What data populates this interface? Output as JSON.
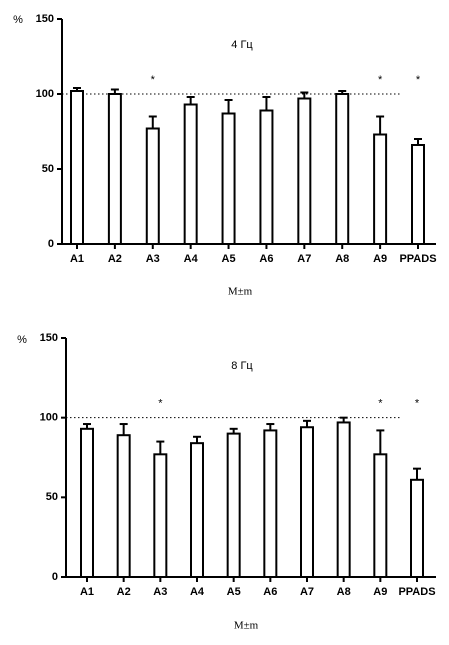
{
  "chart_data": [
    {
      "type": "bar",
      "title": "4 Гц",
      "y_label": "%",
      "x_label": "M±m",
      "categories": [
        "A1",
        "A2",
        "A3",
        "A4",
        "A5",
        "A6",
        "A7",
        "A8",
        "A9",
        "PPADS"
      ],
      "values": [
        102,
        100,
        77,
        93,
        87,
        89,
        97,
        100,
        73,
        66
      ],
      "errors": [
        2,
        3,
        8,
        5,
        9,
        9,
        4,
        2,
        12,
        4
      ],
      "significance": [
        null,
        null,
        "*",
        null,
        null,
        null,
        null,
        null,
        "*",
        "*"
      ],
      "ref_line": 100,
      "color": "#ffffff",
      "ylim": [
        0,
        150
      ],
      "yticks": [
        0,
        50,
        100,
        150
      ]
    },
    {
      "type": "bar",
      "title": "8 Гц",
      "y_label": "%",
      "x_label": "M±m",
      "categories": [
        "A1",
        "A2",
        "A3",
        "A4",
        "A5",
        "A6",
        "A7",
        "A8",
        "A9",
        "PPADS"
      ],
      "values": [
        93,
        89,
        77,
        84,
        90,
        92,
        94,
        97,
        77,
        61
      ],
      "errors": [
        3,
        7,
        8,
        4,
        3,
        4,
        4,
        3,
        15,
        7
      ],
      "significance": [
        null,
        null,
        "*",
        null,
        null,
        null,
        null,
        null,
        "*",
        "*"
      ],
      "ref_line": 100,
      "color": "#ffffff",
      "ylim": [
        0,
        150
      ],
      "yticks": [
        0,
        50,
        100,
        150
      ]
    }
  ]
}
